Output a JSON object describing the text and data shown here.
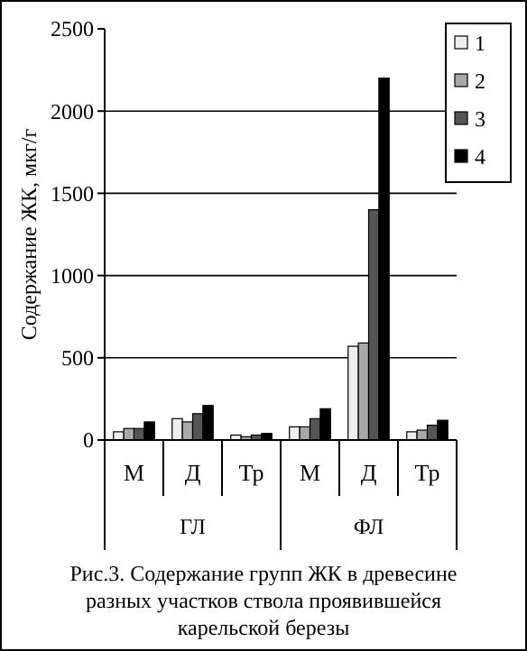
{
  "chart_data": {
    "type": "bar",
    "ylabel": "Содержание ЖК, мкг/г",
    "categories": [
      "М",
      "Д",
      "Тр",
      "М",
      "Д",
      "Тр"
    ],
    "series": [
      {
        "name": "1",
        "color": "#eeeeee",
        "values": [
          50,
          130,
          30,
          80,
          570,
          50
        ]
      },
      {
        "name": "2",
        "color": "#a8a8a8",
        "values": [
          70,
          110,
          20,
          80,
          590,
          60
        ]
      },
      {
        "name": "3",
        "color": "#555555",
        "values": [
          70,
          160,
          30,
          130,
          1400,
          90
        ]
      },
      {
        "name": "4",
        "color": "#000000",
        "values": [
          110,
          210,
          40,
          190,
          2200,
          120
        ]
      }
    ],
    "ylim": [
      0,
      2500
    ],
    "yticks": [
      0,
      500,
      1000,
      1500,
      2000,
      2500
    ],
    "grid": "y",
    "legend": "top right",
    "annotations": [
      "ГЛ",
      "ФЛ",
      "Рис.3. Содержание групп ЖК в древесине разных участков ствола проявившейся карельской березы"
    ]
  }
}
